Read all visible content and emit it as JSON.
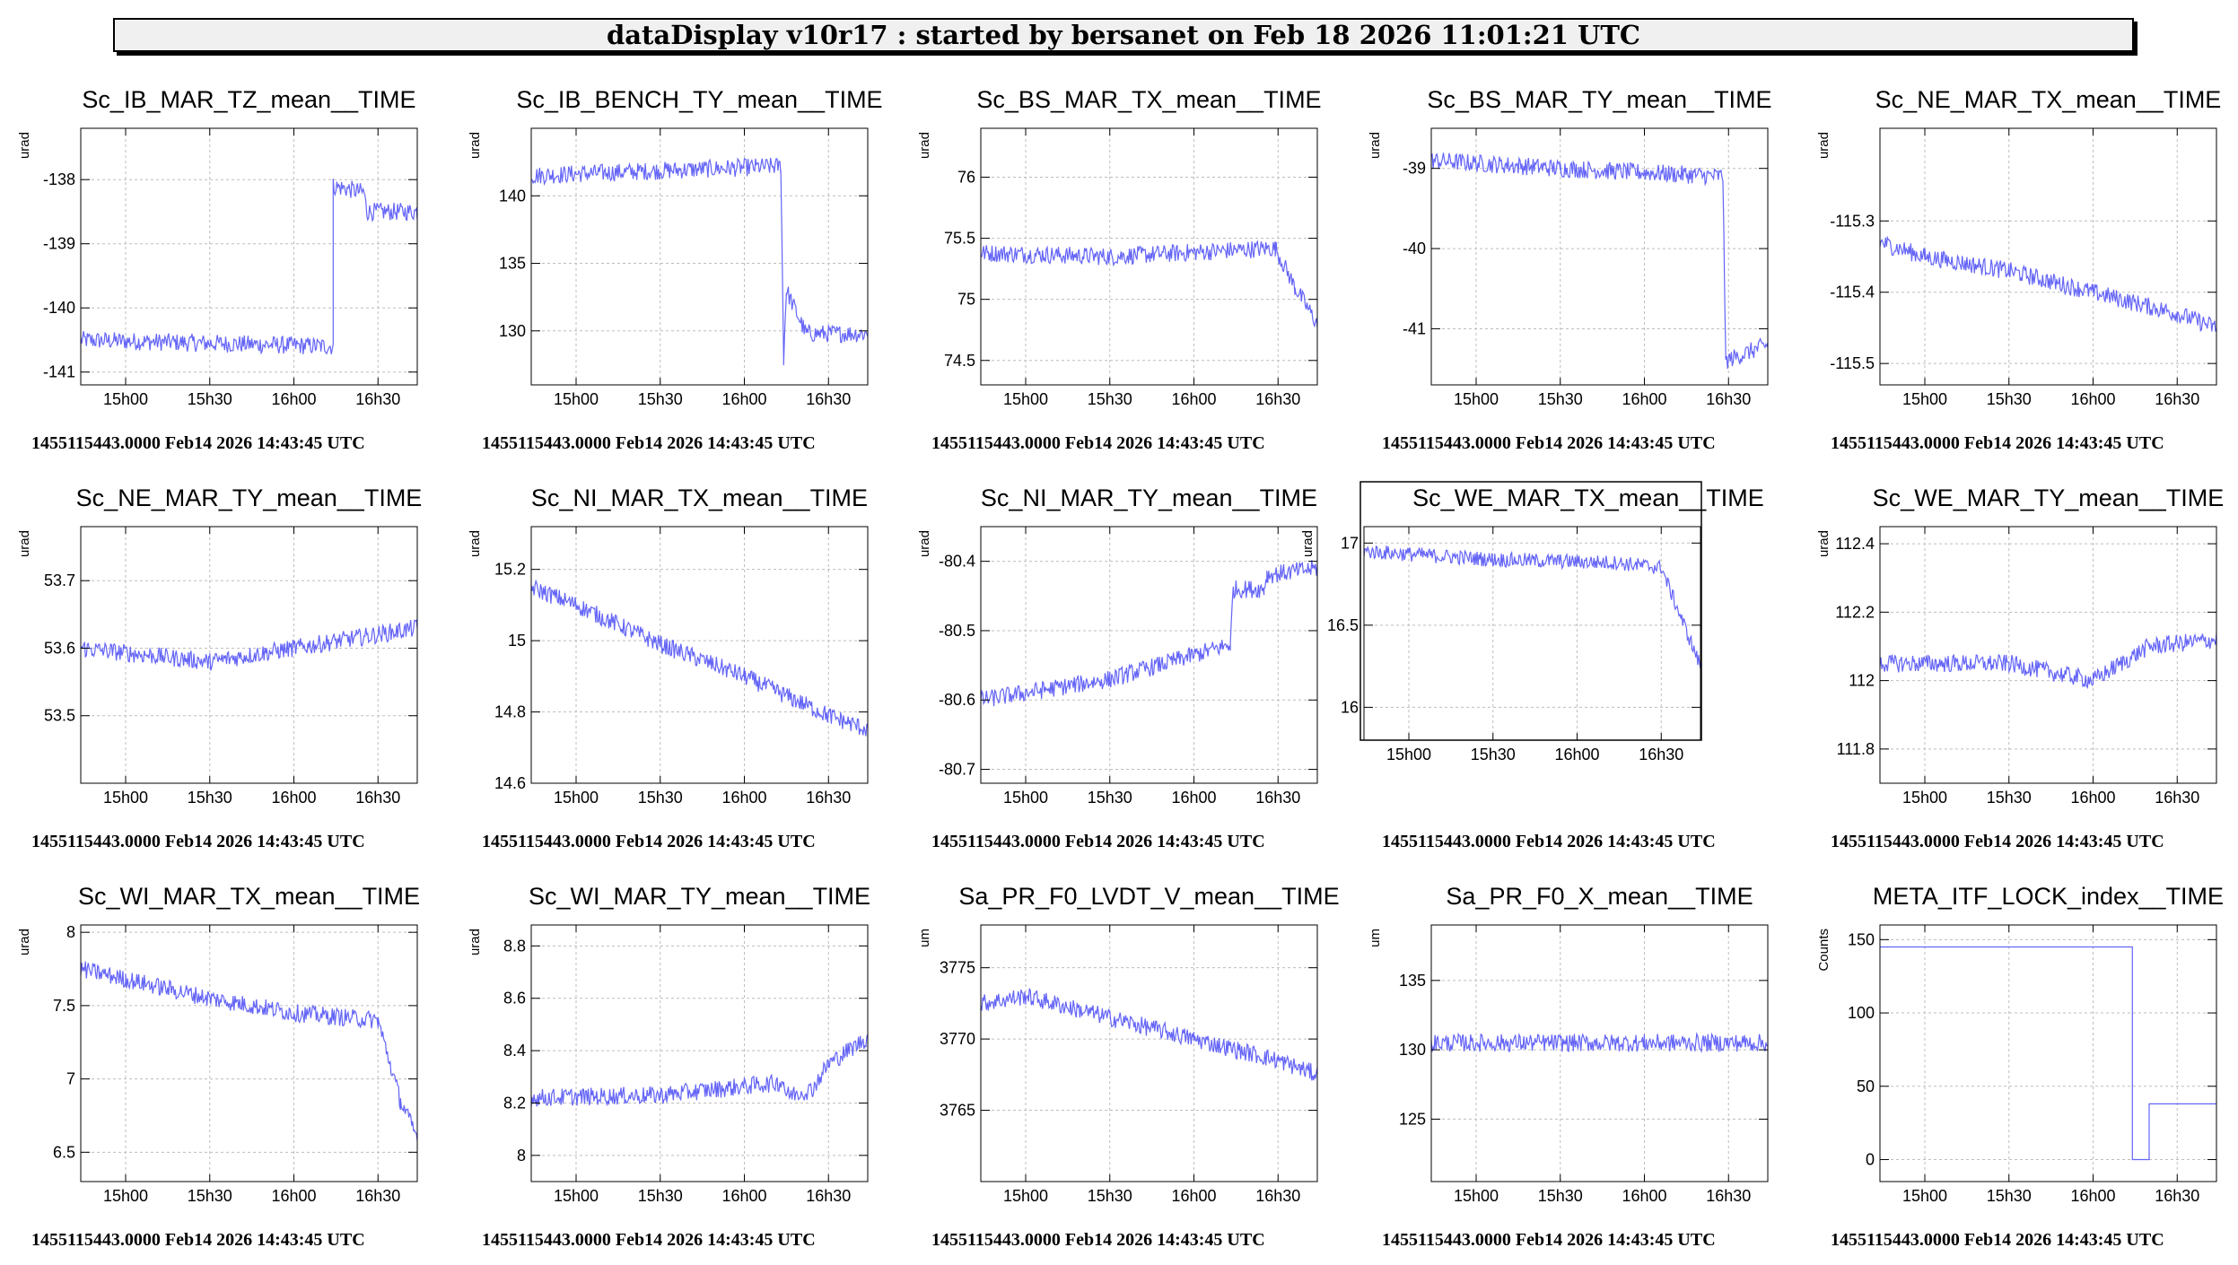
{
  "header": {
    "title": "dataDisplay v10r17 : started by bersanet on Feb 18 2026 11:01:21 UTC"
  },
  "footer_text": "1455115443.0000 Feb14 2026 14:43:45 UTC",
  "colors": {
    "series": "#6464f7",
    "grid": "#bdbdbd",
    "axis": "#000000",
    "frame_box": "#000000"
  },
  "chart_data": [
    {
      "type": "line",
      "title": "Sc_IB_MAR_TZ_mean__TIME",
      "ylabel": "urad",
      "xticks": [
        "15h00",
        "15h30",
        "16h00",
        "16h30"
      ],
      "yticks": [
        -138,
        -139,
        -140,
        -141
      ],
      "ylim": [
        -141.2,
        -137.2
      ],
      "series": [
        {
          "name": "Sc_IB_MAR_TZ_mean__TIME",
          "x": [
            "14h44",
            "16h14",
            "16h14",
            "16h25",
            "16h26",
            "16h44"
          ],
          "y": [
            -140.5,
            -140.6,
            -138.1,
            -138.2,
            -138.5,
            -138.5
          ]
        }
      ]
    },
    {
      "type": "line",
      "title": "Sc_IB_BENCH_TY_mean__TIME",
      "ylabel": "urad",
      "xticks": [
        "15h00",
        "15h30",
        "16h00",
        "16h30"
      ],
      "yticks": [
        140,
        135,
        130
      ],
      "ylim": [
        126,
        145
      ],
      "series": [
        {
          "name": "Sc_IB_BENCH_TY_mean__TIME",
          "x": [
            "14h44",
            "16h13",
            "16h14",
            "16h15",
            "16h22",
            "16h44"
          ],
          "y": [
            141.5,
            142.2,
            128.0,
            133.0,
            129.8,
            129.8
          ]
        }
      ]
    },
    {
      "type": "line",
      "title": "Sc_BS_MAR_TX_mean__TIME",
      "ylabel": "urad",
      "xticks": [
        "15h00",
        "15h30",
        "16h00",
        "16h30"
      ],
      "yticks": [
        76,
        75.5,
        75,
        74.5
      ],
      "ylim": [
        74.3,
        76.4
      ],
      "series": [
        {
          "name": "Sc_BS_MAR_TX_mean__TIME",
          "x": [
            "14h44",
            "15h30",
            "16h29",
            "16h36",
            "16h44"
          ],
          "y": [
            75.38,
            75.35,
            75.42,
            75.1,
            74.8
          ]
        }
      ]
    },
    {
      "type": "line",
      "title": "Sc_BS_MAR_TY_mean__TIME",
      "ylabel": "urad",
      "xticks": [
        "15h00",
        "15h30",
        "16h00",
        "16h30"
      ],
      "yticks": [
        -39,
        -40,
        -41
      ],
      "ylim": [
        -41.7,
        -38.5
      ],
      "series": [
        {
          "name": "Sc_BS_MAR_TY_mean__TIME",
          "x": [
            "14h44",
            "15h30",
            "16h28",
            "16h29",
            "16h44"
          ],
          "y": [
            -38.9,
            -39.0,
            -39.1,
            -41.4,
            -41.2
          ]
        }
      ]
    },
    {
      "type": "line",
      "title": "Sc_NE_MAR_TX_mean__TIME",
      "ylabel": "urad",
      "xticks": [
        "15h00",
        "15h30",
        "16h00",
        "16h30"
      ],
      "yticks": [
        -115.3,
        -115.4,
        -115.5
      ],
      "ylim": [
        -115.53,
        -115.17
      ],
      "series": [
        {
          "name": "Sc_NE_MAR_TX_mean__TIME",
          "x": [
            "14h44",
            "15h00",
            "15h30",
            "16h00",
            "16h30",
            "16h44"
          ],
          "y": [
            -115.33,
            -115.35,
            -115.37,
            -115.4,
            -115.43,
            -115.45
          ]
        }
      ]
    },
    {
      "type": "line",
      "title": "Sc_NE_MAR_TY_mean__TIME",
      "ylabel": "urad",
      "xticks": [
        "15h00",
        "15h30",
        "16h00",
        "16h30"
      ],
      "yticks": [
        53.7,
        53.6,
        53.5
      ],
      "ylim": [
        53.4,
        53.78
      ],
      "series": [
        {
          "name": "Sc_NE_MAR_TY_mean__TIME",
          "x": [
            "14h44",
            "15h30",
            "16h00",
            "16h44"
          ],
          "y": [
            53.6,
            53.58,
            53.6,
            53.63
          ]
        }
      ]
    },
    {
      "type": "line",
      "title": "Sc_NI_MAR_TX_mean__TIME",
      "ylabel": "urad",
      "xticks": [
        "15h00",
        "15h30",
        "16h00",
        "16h30"
      ],
      "yticks": [
        15.2,
        15,
        14.8,
        14.6
      ],
      "ylim": [
        14.6,
        15.32
      ],
      "series": [
        {
          "name": "Sc_NI_MAR_TX_mean__TIME",
          "x": [
            "14h44",
            "15h00",
            "15h30",
            "16h00",
            "16h30",
            "16h44"
          ],
          "y": [
            15.15,
            15.1,
            14.99,
            14.9,
            14.79,
            14.75
          ]
        }
      ]
    },
    {
      "type": "line",
      "title": "Sc_NI_MAR_TY_mean__TIME",
      "ylabel": "urad",
      "xticks": [
        "15h00",
        "15h30",
        "16h00",
        "16h30"
      ],
      "yticks": [
        -80.4,
        -80.5,
        -80.6,
        -80.7
      ],
      "ylim": [
        -80.72,
        -80.35
      ],
      "series": [
        {
          "name": "Sc_NI_MAR_TY_mean__TIME",
          "x": [
            "14h44",
            "15h30",
            "16h13",
            "16h14",
            "16h25",
            "16h26",
            "16h44"
          ],
          "y": [
            -80.6,
            -80.57,
            -80.52,
            -80.44,
            -80.44,
            -80.42,
            -80.41
          ]
        }
      ]
    },
    {
      "type": "line",
      "title": "Sc_WE_MAR_TX_mean__TIME",
      "ylabel": "urad",
      "xticks": [
        "15h00",
        "15h30",
        "16h00",
        "16h30"
      ],
      "yticks": [
        17,
        16.5,
        16
      ],
      "ylim": [
        15.8,
        17.1
      ],
      "series": [
        {
          "name": "Sc_WE_MAR_TX_mean__TIME",
          "x": [
            "14h44",
            "15h30",
            "16h14",
            "16h30",
            "16h44"
          ],
          "y": [
            16.95,
            16.9,
            16.88,
            16.85,
            16.25
          ]
        }
      ]
    },
    {
      "type": "line",
      "title": "Sc_WE_MAR_TY_mean__TIME",
      "ylabel": "urad",
      "xticks": [
        "15h00",
        "15h30",
        "16h00",
        "16h30"
      ],
      "yticks": [
        112.4,
        112.2,
        112,
        111.8
      ],
      "ylim": [
        111.7,
        112.45
      ],
      "series": [
        {
          "name": "Sc_WE_MAR_TY_mean__TIME",
          "x": [
            "14h44",
            "15h30",
            "16h00",
            "16h20",
            "16h44"
          ],
          "y": [
            112.05,
            112.05,
            112.0,
            112.1,
            112.12
          ]
        }
      ]
    },
    {
      "type": "line",
      "title": "Sc_WI_MAR_TX_mean__TIME",
      "ylabel": "urad",
      "xticks": [
        "15h00",
        "15h30",
        "16h00",
        "16h30"
      ],
      "yticks": [
        8,
        7.5,
        7,
        6.5
      ],
      "ylim": [
        6.3,
        8.05
      ],
      "series": [
        {
          "name": "Sc_WI_MAR_TX_mean__TIME",
          "x": [
            "14h44",
            "15h00",
            "15h30",
            "16h00",
            "16h30",
            "16h38",
            "16h44"
          ],
          "y": [
            7.75,
            7.68,
            7.55,
            7.45,
            7.4,
            6.85,
            6.6
          ]
        }
      ]
    },
    {
      "type": "line",
      "title": "Sc_WI_MAR_TY_mean__TIME",
      "ylabel": "urad",
      "xticks": [
        "15h00",
        "15h30",
        "16h00",
        "16h30"
      ],
      "yticks": [
        8.8,
        8.6,
        8.4,
        8.2,
        8
      ],
      "ylim": [
        7.9,
        8.88
      ],
      "series": [
        {
          "name": "Sc_WI_MAR_TY_mean__TIME",
          "x": [
            "14h44",
            "15h30",
            "16h14",
            "16h15",
            "16h24",
            "16h30",
            "16h44"
          ],
          "y": [
            8.22,
            8.23,
            8.28,
            8.23,
            8.25,
            8.35,
            8.45
          ]
        }
      ]
    },
    {
      "type": "line",
      "title": "Sa_PR_F0_LVDT_V_mean__TIME",
      "ylabel": "um",
      "xticks": [
        "15h00",
        "15h30",
        "16h00",
        "16h30"
      ],
      "yticks": [
        3775,
        3770,
        3765
      ],
      "ylim": [
        3760,
        3778
      ],
      "series": [
        {
          "name": "Sa_PR_F0_LVDT_V_mean__TIME",
          "x": [
            "14h44",
            "15h00",
            "15h30",
            "16h00",
            "16h30",
            "16h44"
          ],
          "y": [
            3772.5,
            3773.0,
            3771.5,
            3770.0,
            3768.5,
            3767.5
          ]
        }
      ]
    },
    {
      "type": "line",
      "title": "Sa_PR_F0_X_mean__TIME",
      "ylabel": "um",
      "xticks": [
        "15h00",
        "15h30",
        "16h00",
        "16h30"
      ],
      "yticks": [
        135,
        130,
        125
      ],
      "ylim": [
        120.5,
        139
      ],
      "series": [
        {
          "name": "Sa_PR_F0_X_mean__TIME",
          "x": [
            "14h44",
            "15h30",
            "16h00",
            "16h44"
          ],
          "y": [
            130.5,
            130.5,
            130.5,
            130.5
          ]
        }
      ]
    },
    {
      "type": "line",
      "title": "META_ITF_LOCK_index__TIME",
      "ylabel": "Counts",
      "xticks": [
        "15h00",
        "15h30",
        "16h00",
        "16h30"
      ],
      "yticks": [
        150,
        100,
        50,
        0
      ],
      "ylim": [
        -15,
        160
      ],
      "series": [
        {
          "name": "META_ITF_LOCK_index__TIME",
          "x": [
            "14h44",
            "16h14",
            "16h14",
            "16h20",
            "16h20",
            "16h44"
          ],
          "y": [
            145,
            145,
            0,
            0,
            38,
            38
          ]
        }
      ]
    }
  ]
}
